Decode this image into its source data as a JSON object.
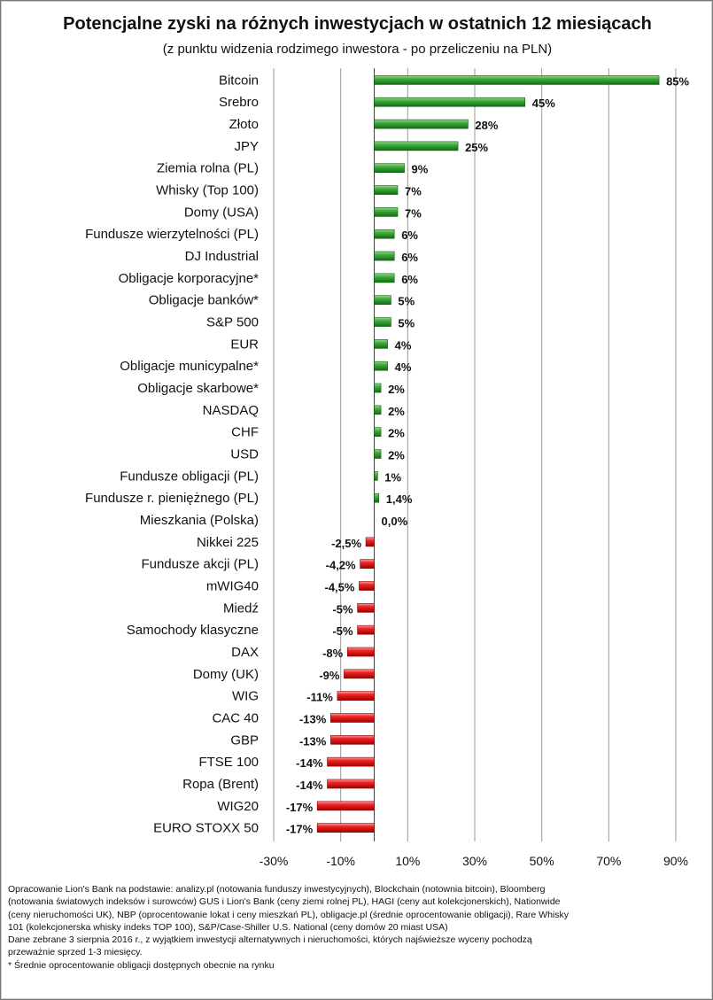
{
  "chart_data": {
    "type": "bar",
    "orientation": "horizontal",
    "title": "Potencjalne zyski na różnych inwestycjach w ostatnich 12 miesiącach",
    "subtitle": "(z punktu widzenia rodzimego inwestora - po przeliczeniu na PLN)",
    "xlim": [
      -30,
      90
    ],
    "xticks": [
      "-30%",
      "-10%",
      "10%",
      "30%",
      "50%",
      "70%",
      "90%"
    ],
    "xtick_values": [
      -30,
      -10,
      10,
      30,
      50,
      70,
      90
    ],
    "grid": true,
    "colors": {
      "positive": "#2e9a2e",
      "negative": "#e01414",
      "grid": "#9a9a9a"
    },
    "categories": [
      "Bitcoin",
      "Srebro",
      "Złoto",
      "JPY",
      "Ziemia rolna (PL)",
      "Whisky (Top 100)",
      "Domy (USA)",
      "Fundusze wierzytelności (PL)",
      "DJ Industrial",
      "Obligacje korporacyjne*",
      "Obligacje banków*",
      "S&P 500",
      "EUR",
      "Obligacje municypalne*",
      "Obligacje skarbowe*",
      "NASDAQ",
      "CHF",
      "USD",
      "Fundusze obligacji (PL)",
      "Fundusze r. pieniężnego (PL)",
      "Mieszkania (Polska)",
      "Nikkei 225",
      "Fundusze akcji (PL)",
      "mWIG40",
      "Miedź",
      "Samochody klasyczne",
      "DAX",
      "Domy (UK)",
      "WIG",
      "CAC 40",
      "GBP",
      "FTSE 100",
      "Ropa (Brent)",
      "WIG20",
      "EURO STOXX 50"
    ],
    "values": [
      85,
      45,
      28,
      25,
      9,
      7,
      7,
      6,
      6,
      6,
      5,
      5,
      4,
      4,
      2,
      2,
      2,
      2,
      1,
      1.4,
      0,
      -2.5,
      -4.2,
      -4.5,
      -5,
      -5,
      -8,
      -9,
      -11,
      -13,
      -13,
      -14,
      -14,
      -17,
      -17
    ],
    "data_labels": [
      "85%",
      "45%",
      "28%",
      "25%",
      "9%",
      "7%",
      "7%",
      "6%",
      "6%",
      "6%",
      "5%",
      "5%",
      "4%",
      "4%",
      "2%",
      "2%",
      "2%",
      "2%",
      "1%",
      "1,4%",
      "0,0%",
      "-2,5%",
      "-4,2%",
      "-4,5%",
      "-5%",
      "-5%",
      "-8%",
      "-9%",
      "-11%",
      "-13%",
      "-13%",
      "-14%",
      "-14%",
      "-17%",
      "-17%"
    ]
  },
  "footer": {
    "lines": [
      "Opracowanie Lion's Bank na podstawie: analizy.pl (notowania funduszy inwestycyjnych), Blockchain (notownia bitcoin), Bloomberg",
      "(notowania światowych indeksów i surowców) GUS i Lion's Bank (ceny ziemi rolnej PL), HAGI (ceny aut kolekcjonerskich), Nationwide",
      "(ceny nieruchomości UK), NBP (oprocentowanie lokat i ceny mieszkań PL), obligacje.pl (średnie oprocentowanie obligacji), Rare Whisky",
      "101 (kolekcjonerska whisky indeks TOP 100), S&P/Case-Shiller U.S. National (ceny domów 20 miast USA)",
      "Dane zebrane 3 sierpnia 2016 r., z wyjątkiem inwestycji alternatywnych i nieruchomości, których najświeższe wyceny pochodzą",
      "przeważnie sprzed 1-3 miesięcy.",
      "* Średnie oprocentowanie obligacji dostępnych obecnie na rynku"
    ]
  }
}
